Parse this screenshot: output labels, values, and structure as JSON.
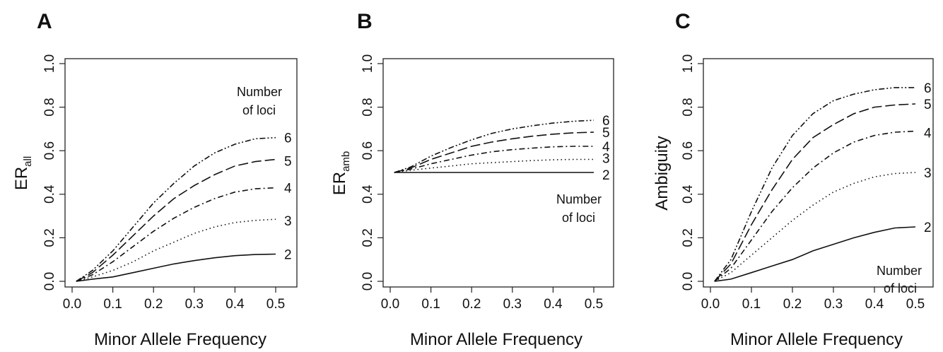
{
  "chart_data": [
    {
      "panel": "A",
      "type": "line",
      "xlabel": "Minor Allele Frequency",
      "ylabel": "ER",
      "ylabel_sub": "all",
      "xlim": [
        0.0,
        0.5
      ],
      "ylim": [
        0.0,
        1.0
      ],
      "xticks": [
        "0.0",
        "0.1",
        "0.2",
        "0.3",
        "0.4",
        "0.5"
      ],
      "yticks": [
        "0.0",
        "0.2",
        "0.4",
        "0.6",
        "0.8",
        "1.0"
      ],
      "annotation": [
        "Number",
        "of loci"
      ],
      "annotation_pos": "upper-right",
      "x": [
        0.01,
        0.05,
        0.1,
        0.15,
        0.2,
        0.25,
        0.3,
        0.35,
        0.4,
        0.45,
        0.5
      ],
      "series": [
        {
          "label": "2",
          "style": "solid",
          "values": [
            0.0,
            0.01,
            0.02,
            0.04,
            0.06,
            0.08,
            0.095,
            0.108,
            0.118,
            0.123,
            0.125
          ]
        },
        {
          "label": "3",
          "style": "dotted",
          "values": [
            0.0,
            0.02,
            0.05,
            0.09,
            0.14,
            0.18,
            0.22,
            0.25,
            0.27,
            0.28,
            0.285
          ]
        },
        {
          "label": "4",
          "style": "dashdot",
          "values": [
            0.0,
            0.03,
            0.09,
            0.16,
            0.23,
            0.29,
            0.34,
            0.38,
            0.41,
            0.425,
            0.43
          ]
        },
        {
          "label": "5",
          "style": "longdash",
          "values": [
            0.0,
            0.04,
            0.12,
            0.21,
            0.3,
            0.38,
            0.44,
            0.49,
            0.53,
            0.55,
            0.56
          ]
        },
        {
          "label": "6",
          "style": "dashdotdot",
          "values": [
            0.0,
            0.05,
            0.14,
            0.25,
            0.36,
            0.45,
            0.53,
            0.59,
            0.63,
            0.655,
            0.66
          ]
        }
      ]
    },
    {
      "panel": "B",
      "type": "line",
      "xlabel": "Minor Allele Frequency",
      "ylabel": "ER",
      "ylabel_sub": "amb",
      "xlim": [
        0.0,
        0.5
      ],
      "ylim": [
        0.0,
        1.0
      ],
      "xticks": [
        "0.0",
        "0.1",
        "0.2",
        "0.3",
        "0.4",
        "0.5"
      ],
      "yticks": [
        "0.0",
        "0.2",
        "0.4",
        "0.6",
        "0.8",
        "1.0"
      ],
      "annotation": [
        "Number",
        "of loci"
      ],
      "annotation_pos": "right",
      "x": [
        0.01,
        0.05,
        0.1,
        0.15,
        0.2,
        0.25,
        0.3,
        0.35,
        0.4,
        0.45,
        0.5
      ],
      "series": [
        {
          "label": "2",
          "style": "solid",
          "values": [
            0.5,
            0.5,
            0.5,
            0.5,
            0.5,
            0.5,
            0.5,
            0.5,
            0.5,
            0.5,
            0.5
          ]
        },
        {
          "label": "3",
          "style": "dotted",
          "values": [
            0.5,
            0.51,
            0.52,
            0.53,
            0.54,
            0.545,
            0.55,
            0.555,
            0.558,
            0.56,
            0.56
          ]
        },
        {
          "label": "4",
          "style": "dashdot",
          "values": [
            0.5,
            0.515,
            0.54,
            0.56,
            0.58,
            0.595,
            0.605,
            0.612,
            0.618,
            0.62,
            0.62
          ]
        },
        {
          "label": "5",
          "style": "longdash",
          "values": [
            0.5,
            0.52,
            0.56,
            0.59,
            0.62,
            0.64,
            0.655,
            0.667,
            0.676,
            0.682,
            0.685
          ]
        },
        {
          "label": "6",
          "style": "dashdotdot",
          "values": [
            0.5,
            0.525,
            0.575,
            0.615,
            0.65,
            0.68,
            0.7,
            0.715,
            0.727,
            0.735,
            0.74
          ]
        }
      ]
    },
    {
      "panel": "C",
      "type": "line",
      "xlabel": "Minor Allele Frequency",
      "ylabel": "Ambiguity",
      "ylabel_sub": "",
      "xlim": [
        0.0,
        0.5
      ],
      "ylim": [
        0.0,
        1.0
      ],
      "xticks": [
        "0.0",
        "0.1",
        "0.2",
        "0.3",
        "0.4",
        "0.5"
      ],
      "yticks": [
        "0.0",
        "0.2",
        "0.4",
        "0.6",
        "0.8",
        "1.0"
      ],
      "annotation": [
        "Number",
        "of loci"
      ],
      "annotation_pos": "lower-right",
      "x": [
        0.01,
        0.05,
        0.1,
        0.15,
        0.2,
        0.25,
        0.3,
        0.35,
        0.4,
        0.45,
        0.5
      ],
      "series": [
        {
          "label": "2",
          "style": "solid",
          "values": [
            0.0,
            0.01,
            0.04,
            0.07,
            0.1,
            0.14,
            0.17,
            0.2,
            0.225,
            0.245,
            0.25
          ]
        },
        {
          "label": "3",
          "style": "dotted",
          "values": [
            0.0,
            0.04,
            0.12,
            0.2,
            0.28,
            0.35,
            0.41,
            0.45,
            0.48,
            0.495,
            0.5
          ]
        },
        {
          "label": "4",
          "style": "dashdot",
          "values": [
            0.0,
            0.06,
            0.19,
            0.32,
            0.43,
            0.52,
            0.59,
            0.64,
            0.67,
            0.685,
            0.69
          ]
        },
        {
          "label": "5",
          "style": "longdash",
          "values": [
            0.0,
            0.08,
            0.26,
            0.42,
            0.56,
            0.66,
            0.72,
            0.77,
            0.8,
            0.81,
            0.815
          ]
        },
        {
          "label": "6",
          "style": "dashdotdot",
          "values": [
            0.0,
            0.1,
            0.32,
            0.52,
            0.67,
            0.77,
            0.83,
            0.86,
            0.88,
            0.89,
            0.89
          ]
        }
      ]
    }
  ]
}
